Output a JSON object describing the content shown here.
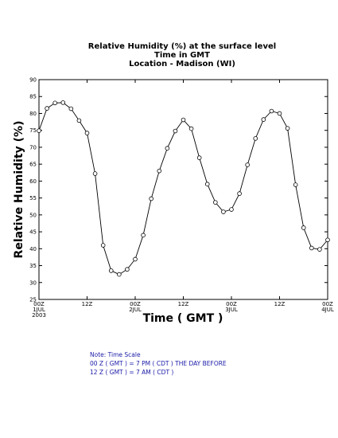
{
  "chart_data": {
    "type": "line",
    "title_lines": [
      "Relative Humidity (%) at the surface level",
      "Time in GMT",
      "Location - Madison (WI)"
    ],
    "xlabel": "Time ( GMT )",
    "ylabel": "Relative Humidity (%)",
    "ylim": [
      25,
      90
    ],
    "yticks": [
      25,
      30,
      35,
      40,
      45,
      50,
      55,
      60,
      65,
      70,
      75,
      80,
      85,
      90
    ],
    "xlim_hours": [
      0,
      72
    ],
    "xticks": [
      {
        "hour": 0,
        "label": "00Z",
        "sub": "1JUL",
        "sub2": "2003"
      },
      {
        "hour": 12,
        "label": "12Z",
        "sub": "",
        "sub2": ""
      },
      {
        "hour": 24,
        "label": "00Z",
        "sub": "2JUL",
        "sub2": ""
      },
      {
        "hour": 36,
        "label": "12Z",
        "sub": "",
        "sub2": ""
      },
      {
        "hour": 48,
        "label": "00Z",
        "sub": "3JUL",
        "sub2": ""
      },
      {
        "hour": 60,
        "label": "12Z",
        "sub": "",
        "sub2": ""
      },
      {
        "hour": 72,
        "label": "00Z",
        "sub": "4JUL",
        "sub2": ""
      }
    ],
    "grid": false,
    "series": [
      {
        "x": [
          0,
          2,
          4,
          6,
          8,
          10,
          12,
          14,
          16,
          18,
          20,
          22,
          24,
          26,
          28,
          30,
          32,
          34,
          36,
          38,
          40,
          42,
          44,
          46,
          48,
          50,
          52,
          54,
          56,
          58,
          60,
          62,
          64,
          66,
          68,
          70,
          72
        ],
        "values": [
          74.9,
          81.5,
          83.1,
          83.2,
          81.4,
          77.9,
          74.2,
          62.2,
          41.0,
          33.5,
          32.4,
          33.9,
          36.9,
          44.0,
          54.8,
          63.0,
          69.7,
          74.8,
          78.1,
          75.5,
          66.9,
          59.1,
          53.7,
          50.9,
          51.6,
          56.3,
          64.8,
          72.6,
          78.2,
          80.7,
          80.0,
          75.6,
          58.9,
          46.2,
          40.2,
          39.8,
          42.6
        ]
      }
    ]
  },
  "note": {
    "line1": "Note: Time Scale",
    "line2": "00 Z ( GMT ) = 7 PM ( CDT ) THE DAY BEFORE",
    "line3": "12 Z ( GMT ) = 7 AM ( CDT )"
  }
}
